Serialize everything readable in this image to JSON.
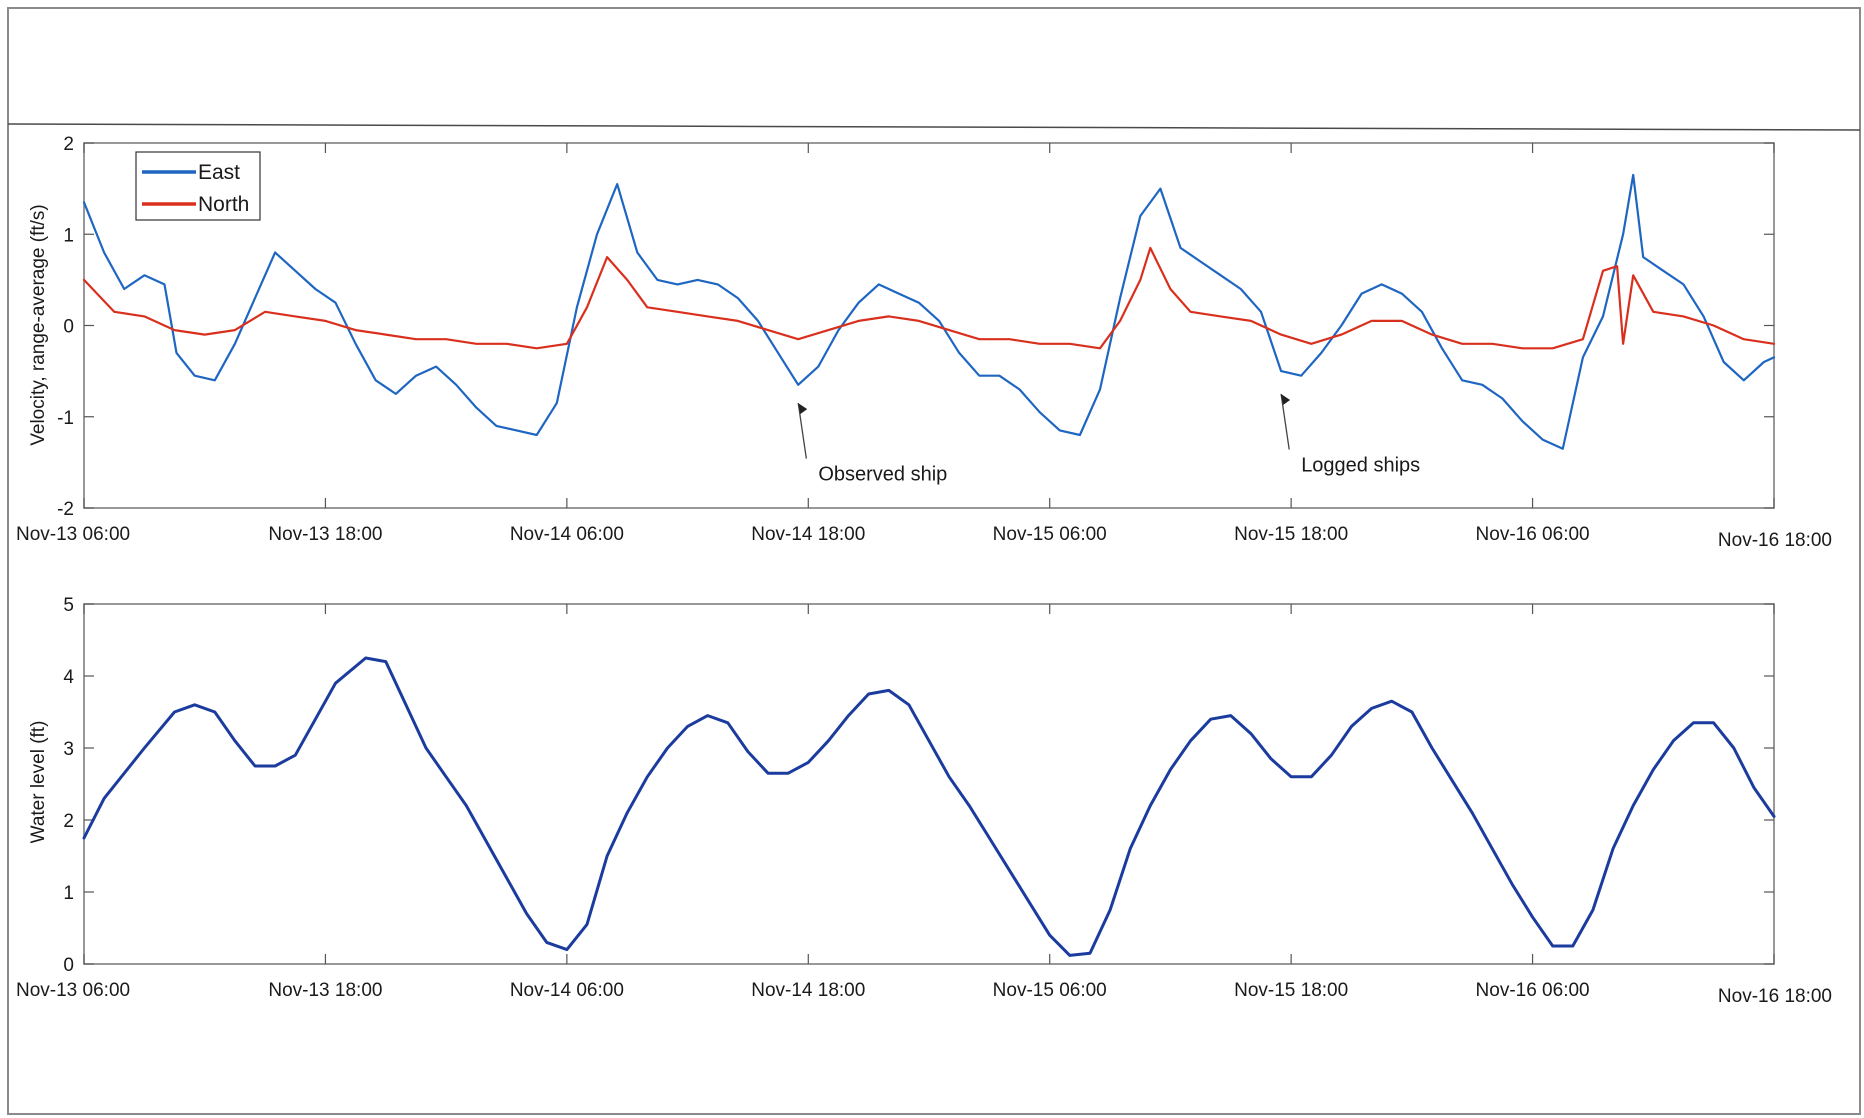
{
  "chart_data": [
    {
      "type": "line",
      "ylabel": "Velocity, range-average (ft/s)",
      "ylim": [
        -2,
        2
      ],
      "yticks": [
        "-2",
        "-1",
        "0",
        "1",
        "2"
      ],
      "x_range_hours": [
        0,
        84
      ],
      "xticks": [
        "Nov-13 06:00",
        "Nov-13 18:00",
        "Nov-14 06:00",
        "Nov-14 18:00",
        "Nov-15 06:00",
        "Nov-15 18:00",
        "Nov-16 06:00",
        "Nov-16 18:00"
      ],
      "grid": false,
      "legend": {
        "placement": "top-left",
        "entries": [
          "East",
          "North"
        ]
      },
      "annotations": [
        {
          "text": "Observed ship",
          "x": 36.5,
          "y": -1.7,
          "arrow_to": [
            35.5,
            -0.85
          ]
        },
        {
          "text": "Logged ships",
          "x": 60.5,
          "y": -1.6,
          "arrow_to": [
            59.5,
            -0.75
          ]
        }
      ],
      "series": [
        {
          "name": "East",
          "color": "#1f66c2",
          "points": [
            [
              0,
              1.35
            ],
            [
              1,
              0.8
            ],
            [
              2,
              0.4
            ],
            [
              3,
              0.55
            ],
            [
              4,
              0.45
            ],
            [
              4.6,
              -0.3
            ],
            [
              5.5,
              -0.55
            ],
            [
              6.5,
              -0.6
            ],
            [
              7.5,
              -0.2
            ],
            [
              8.5,
              0.3
            ],
            [
              9.5,
              0.8
            ],
            [
              10.5,
              0.6
            ],
            [
              11.5,
              0.4
            ],
            [
              12.5,
              0.25
            ],
            [
              13.5,
              -0.2
            ],
            [
              14.5,
              -0.6
            ],
            [
              15.5,
              -0.75
            ],
            [
              16.5,
              -0.55
            ],
            [
              17.5,
              -0.45
            ],
            [
              18.5,
              -0.65
            ],
            [
              19.5,
              -0.9
            ],
            [
              20.5,
              -1.1
            ],
            [
              21.5,
              -1.15
            ],
            [
              22.5,
              -1.2
            ],
            [
              23.5,
              -0.85
            ],
            [
              24.5,
              0.2
            ],
            [
              25.5,
              1.0
            ],
            [
              26.5,
              1.55
            ],
            [
              27.5,
              0.8
            ],
            [
              28.5,
              0.5
            ],
            [
              29.5,
              0.45
            ],
            [
              30.5,
              0.5
            ],
            [
              31.5,
              0.45
            ],
            [
              32.5,
              0.3
            ],
            [
              33.5,
              0.05
            ],
            [
              34.5,
              -0.3
            ],
            [
              35.5,
              -0.65
            ],
            [
              36.5,
              -0.45
            ],
            [
              37.5,
              -0.05
            ],
            [
              38.5,
              0.25
            ],
            [
              39.5,
              0.45
            ],
            [
              40.5,
              0.35
            ],
            [
              41.5,
              0.25
            ],
            [
              42.5,
              0.05
            ],
            [
              43.5,
              -0.3
            ],
            [
              44.5,
              -0.55
            ],
            [
              45.5,
              -0.55
            ],
            [
              46.5,
              -0.7
            ],
            [
              47.5,
              -0.95
            ],
            [
              48.5,
              -1.15
            ],
            [
              49.5,
              -1.2
            ],
            [
              50.5,
              -0.7
            ],
            [
              51.5,
              0.3
            ],
            [
              52.5,
              1.2
            ],
            [
              53.5,
              1.5
            ],
            [
              54.5,
              0.85
            ],
            [
              55.5,
              0.7
            ],
            [
              56.5,
              0.55
            ],
            [
              57.5,
              0.4
            ],
            [
              58.5,
              0.15
            ],
            [
              59.5,
              -0.5
            ],
            [
              60.5,
              -0.55
            ],
            [
              61.5,
              -0.3
            ],
            [
              62.5,
              0.0
            ],
            [
              63.5,
              0.35
            ],
            [
              64.5,
              0.45
            ],
            [
              65.5,
              0.35
            ],
            [
              66.5,
              0.15
            ],
            [
              67.5,
              -0.25
            ],
            [
              68.5,
              -0.6
            ],
            [
              69.5,
              -0.65
            ],
            [
              70.5,
              -0.8
            ],
            [
              71.5,
              -1.05
            ],
            [
              72.5,
              -1.25
            ],
            [
              73.5,
              -1.35
            ],
            [
              74.5,
              -0.35
            ],
            [
              75.5,
              0.1
            ],
            [
              76.5,
              1.0
            ],
            [
              77.0,
              1.65
            ],
            [
              77.5,
              0.75
            ],
            [
              78.5,
              0.6
            ],
            [
              79.5,
              0.45
            ],
            [
              80.5,
              0.1
            ],
            [
              81.5,
              -0.4
            ],
            [
              82.5,
              -0.6
            ],
            [
              83.5,
              -0.4
            ],
            [
              84,
              -0.35
            ]
          ]
        },
        {
          "name": "North",
          "color": "#d9301e",
          "points": [
            [
              0,
              0.5
            ],
            [
              1.5,
              0.15
            ],
            [
              3,
              0.1
            ],
            [
              4.5,
              -0.05
            ],
            [
              6,
              -0.1
            ],
            [
              7.5,
              -0.05
            ],
            [
              9,
              0.15
            ],
            [
              10.5,
              0.1
            ],
            [
              12,
              0.05
            ],
            [
              13.5,
              -0.05
            ],
            [
              15,
              -0.1
            ],
            [
              16.5,
              -0.15
            ],
            [
              18,
              -0.15
            ],
            [
              19.5,
              -0.2
            ],
            [
              21,
              -0.2
            ],
            [
              22.5,
              -0.25
            ],
            [
              24,
              -0.2
            ],
            [
              25,
              0.2
            ],
            [
              26,
              0.75
            ],
            [
              27,
              0.5
            ],
            [
              28,
              0.2
            ],
            [
              29.5,
              0.15
            ],
            [
              31,
              0.1
            ],
            [
              32.5,
              0.05
            ],
            [
              34,
              -0.05
            ],
            [
              35.5,
              -0.15
            ],
            [
              37,
              -0.05
            ],
            [
              38.5,
              0.05
            ],
            [
              40,
              0.1
            ],
            [
              41.5,
              0.05
            ],
            [
              43,
              -0.05
            ],
            [
              44.5,
              -0.15
            ],
            [
              46,
              -0.15
            ],
            [
              47.5,
              -0.2
            ],
            [
              49,
              -0.2
            ],
            [
              50.5,
              -0.25
            ],
            [
              51.5,
              0.05
            ],
            [
              52.5,
              0.5
            ],
            [
              53,
              0.85
            ],
            [
              54,
              0.4
            ],
            [
              55,
              0.15
            ],
            [
              56.5,
              0.1
            ],
            [
              58,
              0.05
            ],
            [
              59.5,
              -0.1
            ],
            [
              61,
              -0.2
            ],
            [
              62.5,
              -0.1
            ],
            [
              64,
              0.05
            ],
            [
              65.5,
              0.05
            ],
            [
              67,
              -0.1
            ],
            [
              68.5,
              -0.2
            ],
            [
              70,
              -0.2
            ],
            [
              71.5,
              -0.25
            ],
            [
              73,
              -0.25
            ],
            [
              74.5,
              -0.15
            ],
            [
              75.5,
              0.6
            ],
            [
              76.2,
              0.65
            ],
            [
              76.5,
              -0.2
            ],
            [
              77,
              0.55
            ],
            [
              78,
              0.15
            ],
            [
              79.5,
              0.1
            ],
            [
              81,
              0.0
            ],
            [
              82.5,
              -0.15
            ],
            [
              84,
              -0.2
            ]
          ]
        }
      ]
    },
    {
      "type": "line",
      "ylabel": "Water level (ft)",
      "ylim": [
        0,
        5
      ],
      "yticks": [
        "0",
        "1",
        "2",
        "3",
        "4",
        "5"
      ],
      "x_range_hours": [
        0,
        84
      ],
      "xticks": [
        "Nov-13 06:00",
        "Nov-13 18:00",
        "Nov-14 06:00",
        "Nov-14 18:00",
        "Nov-15 06:00",
        "Nov-15 18:00",
        "Nov-16 06:00",
        "Nov-16 18:00"
      ],
      "grid": false,
      "series": [
        {
          "color": "#1b3c9e",
          "points": [
            [
              0,
              1.75
            ],
            [
              1,
              2.3
            ],
            [
              3,
              3.0
            ],
            [
              4.5,
              3.5
            ],
            [
              5.5,
              3.6
            ],
            [
              6.5,
              3.5
            ],
            [
              7.5,
              3.1
            ],
            [
              8.5,
              2.75
            ],
            [
              9.5,
              2.75
            ],
            [
              10.5,
              2.9
            ],
            [
              11.5,
              3.4
            ],
            [
              12.5,
              3.9
            ],
            [
              14,
              4.25
            ],
            [
              15,
              4.2
            ],
            [
              16,
              3.6
            ],
            [
              17,
              3.0
            ],
            [
              18,
              2.6
            ],
            [
              19,
              2.2
            ],
            [
              20,
              1.7
            ],
            [
              21,
              1.2
            ],
            [
              22,
              0.7
            ],
            [
              23,
              0.3
            ],
            [
              24,
              0.2
            ],
            [
              25,
              0.55
            ],
            [
              26,
              1.5
            ],
            [
              27,
              2.1
            ],
            [
              28,
              2.6
            ],
            [
              29,
              3.0
            ],
            [
              30,
              3.3
            ],
            [
              31,
              3.45
            ],
            [
              32,
              3.35
            ],
            [
              33,
              2.95
            ],
            [
              34,
              2.65
            ],
            [
              35,
              2.65
            ],
            [
              36,
              2.8
            ],
            [
              37,
              3.1
            ],
            [
              38,
              3.45
            ],
            [
              39,
              3.75
            ],
            [
              40,
              3.8
            ],
            [
              41,
              3.6
            ],
            [
              42,
              3.1
            ],
            [
              43,
              2.6
            ],
            [
              44,
              2.2
            ],
            [
              45,
              1.75
            ],
            [
              46,
              1.3
            ],
            [
              47,
              0.85
            ],
            [
              48,
              0.4
            ],
            [
              49,
              0.12
            ],
            [
              50,
              0.15
            ],
            [
              51,
              0.75
            ],
            [
              52,
              1.6
            ],
            [
              53,
              2.2
            ],
            [
              54,
              2.7
            ],
            [
              55,
              3.1
            ],
            [
              56,
              3.4
            ],
            [
              57,
              3.45
            ],
            [
              58,
              3.2
            ],
            [
              59,
              2.85
            ],
            [
              60,
              2.6
            ],
            [
              61,
              2.6
            ],
            [
              62,
              2.9
            ],
            [
              63,
              3.3
            ],
            [
              64,
              3.55
            ],
            [
              65,
              3.65
            ],
            [
              66,
              3.5
            ],
            [
              67,
              3.0
            ],
            [
              68,
              2.55
            ],
            [
              69,
              2.1
            ],
            [
              70,
              1.6
            ],
            [
              71,
              1.1
            ],
            [
              72,
              0.65
            ],
            [
              73,
              0.25
            ],
            [
              74,
              0.25
            ],
            [
              75,
              0.75
            ],
            [
              76,
              1.6
            ],
            [
              77,
              2.2
            ],
            [
              78,
              2.7
            ],
            [
              79,
              3.1
            ],
            [
              80,
              3.35
            ],
            [
              81,
              3.35
            ],
            [
              82,
              3.0
            ],
            [
              83,
              2.45
            ],
            [
              84,
              2.05
            ]
          ]
        }
      ]
    }
  ]
}
